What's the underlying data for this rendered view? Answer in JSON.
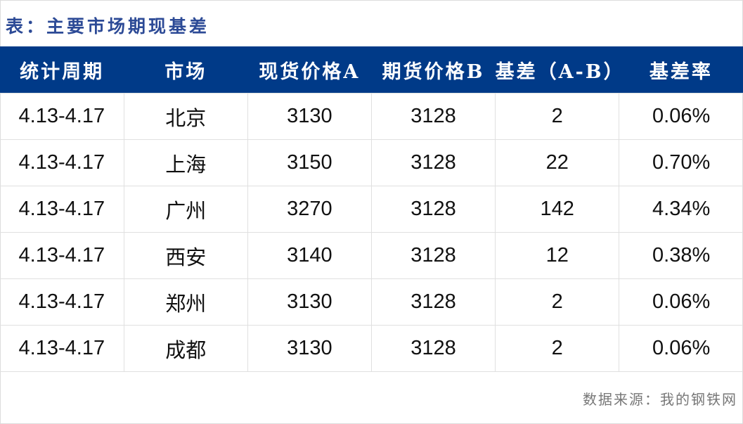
{
  "title": "表：主要市场期现基差",
  "colors": {
    "header_bg": "#003a88",
    "title": "#2c4a96"
  },
  "table": {
    "headers": [
      "统计周期",
      "市场",
      "现货价格A",
      "期货价格B",
      "基差（A-B）",
      "基差率"
    ],
    "rows": [
      [
        "4.13-4.17",
        "北京",
        "3130",
        "3128",
        "2",
        "0.06%"
      ],
      [
        "4.13-4.17",
        "上海",
        "3150",
        "3128",
        "22",
        "0.70%"
      ],
      [
        "4.13-4.17",
        "广州",
        "3270",
        "3128",
        "142",
        "4.34%"
      ],
      [
        "4.13-4.17",
        "西安",
        "3140",
        "3128",
        "12",
        "0.38%"
      ],
      [
        "4.13-4.17",
        "郑州",
        "3130",
        "3128",
        "2",
        "0.06%"
      ],
      [
        "4.13-4.17",
        "成都",
        "3130",
        "3128",
        "2",
        "0.06%"
      ]
    ]
  },
  "source": "数据来源：我的钢铁网"
}
